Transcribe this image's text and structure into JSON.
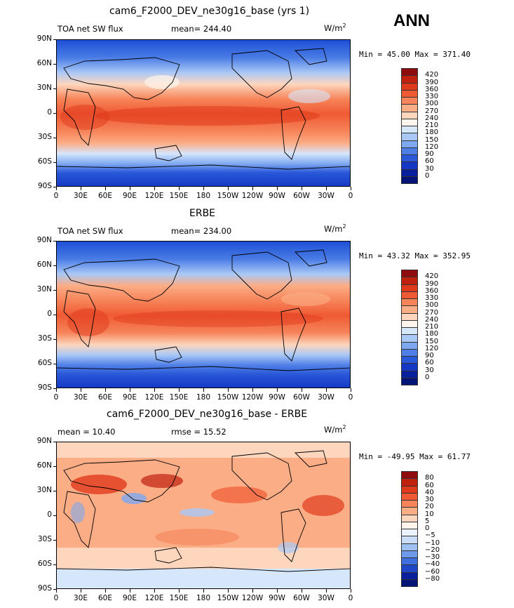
{
  "season": "ANN",
  "units": "W/m",
  "units_sup": "2",
  "lat_ticks": [
    "90N",
    "60N",
    "30N",
    "0",
    "30S",
    "60S",
    "90S"
  ],
  "lon_ticks": [
    "0",
    "30E",
    "60E",
    "90E",
    "120E",
    "150E",
    "180",
    "150W",
    "120W",
    "90W",
    "60W",
    "30W",
    "0"
  ],
  "panels": [
    {
      "title": "cam6_F2000_DEV_ne30g16_base (yrs 1)",
      "left_label": "TOA net SW flux",
      "center_label": "mean=  244.40",
      "minmax": "Min =  45.00 Max = 371.40",
      "levels": [
        "420",
        "390",
        "360",
        "330",
        "300",
        "270",
        "240",
        "210",
        "180",
        "150",
        "120",
        "90",
        "60",
        "30",
        "0"
      ],
      "colors": [
        "#8e0b0e",
        "#c0200e",
        "#e03a1c",
        "#ef5a34",
        "#f7845a",
        "#fbad86",
        "#fdd6bd",
        "#fff5ec",
        "#d6e6fb",
        "#a9c8f6",
        "#7ea8f0",
        "#4f7fe6",
        "#2a58d9",
        "#1437c4",
        "#0a1f9c",
        "#041477"
      ]
    },
    {
      "title": "ERBE",
      "left_label": "TOA net SW flux",
      "center_label": "mean=  234.00",
      "minmax": "Min =  43.32 Max = 352.95",
      "levels": [
        "420",
        "390",
        "360",
        "330",
        "300",
        "270",
        "240",
        "210",
        "180",
        "150",
        "120",
        "90",
        "60",
        "30",
        "0"
      ],
      "colors": [
        "#8e0b0e",
        "#c0200e",
        "#e03a1c",
        "#ef5a34",
        "#f7845a",
        "#fbad86",
        "#fdd6bd",
        "#fff5ec",
        "#d6e6fb",
        "#a9c8f6",
        "#7ea8f0",
        "#4f7fe6",
        "#2a58d9",
        "#1437c4",
        "#0a1f9c",
        "#041477"
      ]
    },
    {
      "title": "cam6_F2000_DEV_ne30g16_base - ERBE",
      "left_label": "mean =   10.40",
      "center_label": "rmse =   15.52",
      "minmax": "Min = -49.95 Max =  61.77",
      "levels": [
        "80",
        "60",
        "40",
        "30",
        "20",
        "10",
        "5",
        "0",
        "−5",
        "−10",
        "−20",
        "−30",
        "−40",
        "−60",
        "−80"
      ],
      "colors": [
        "#8e0b0e",
        "#c0200e",
        "#e03a1c",
        "#ef5a34",
        "#f7845a",
        "#fbad86",
        "#fdd6bd",
        "#fff5ec",
        "#eaf2fd",
        "#c9dcf8",
        "#9ec0f3",
        "#6f9aeb",
        "#3f6fdf",
        "#1f45c8",
        "#0a1f9c",
        "#041477"
      ]
    }
  ]
}
